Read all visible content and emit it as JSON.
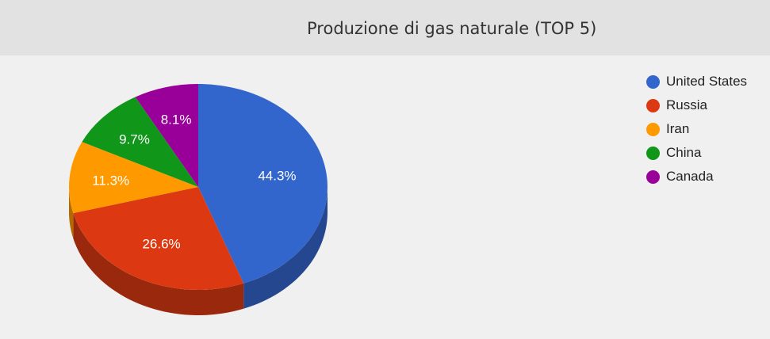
{
  "chart_data": {
    "type": "pie",
    "title": "Produzione di gas naturale (TOP 5)",
    "legend_position": "right",
    "three_d": true,
    "slices": [
      {
        "label": "United States",
        "value": 44.3,
        "display": "44.3%",
        "color": "#3366cc",
        "side_color": "#24478f"
      },
      {
        "label": "Russia",
        "value": 26.6,
        "display": "26.6%",
        "color": "#dc3912",
        "side_color": "#9a280d"
      },
      {
        "label": "Iran",
        "value": 11.3,
        "display": "11.3%",
        "color": "#ff9900",
        "side_color": "#b36b00"
      },
      {
        "label": "China",
        "value": 9.7,
        "display": "9.7%",
        "color": "#109618",
        "side_color": "#0b6911"
      },
      {
        "label": "Canada",
        "value": 8.1,
        "display": "8.1%",
        "color": "#990099",
        "side_color": "#6b006b"
      }
    ]
  }
}
